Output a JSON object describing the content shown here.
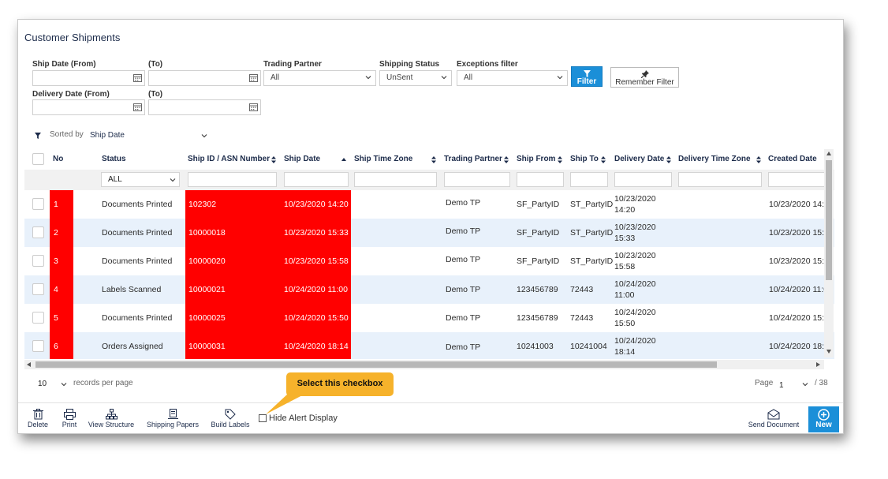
{
  "title": "Customer Shipments",
  "filters": {
    "ship_date_from_label": "Ship Date (From)",
    "ship_date_to_label": "(To)",
    "trading_partner_label": "Trading Partner",
    "trading_partner_value": "All",
    "shipping_status_label": "Shipping Status",
    "shipping_status_value": "UnSent",
    "exceptions_label": "Exceptions filter",
    "exceptions_value": "All",
    "delivery_date_from_label": "Delivery Date (From)",
    "delivery_date_to_label": "(To)",
    "filter_button": "Filter",
    "remember_button": "Remember Filter"
  },
  "sort": {
    "label": "Sorted by",
    "value": "Ship Date"
  },
  "columns": [
    "No",
    "Status",
    "Ship ID / ASN Number",
    "Ship Date",
    "Ship Time Zone",
    "Trading Partner",
    "Ship From",
    "Ship To",
    "Delivery Date",
    "Delivery Time Zone",
    "Created Date"
  ],
  "status_filter": "ALL",
  "rows": [
    {
      "no": "1",
      "status": "Documents Printed",
      "ship_id": "102302",
      "ship_date": "10/23/2020 14:20",
      "partner": "Demo TP",
      "ship_from": "SF_PartyID",
      "ship_to": "ST_PartyID",
      "delivery_date": "10/23/2020",
      "delivery_time": "14:20",
      "created": "10/23/2020 14:2"
    },
    {
      "no": "2",
      "status": "Documents Printed",
      "ship_id": "10000018",
      "ship_date": "10/23/2020 15:33",
      "partner": "Demo TP",
      "ship_from": "SF_PartyID",
      "ship_to": "ST_PartyID",
      "delivery_date": "10/23/2020",
      "delivery_time": "15:33",
      "created": "10/23/2020 15:3"
    },
    {
      "no": "3",
      "status": "Documents Printed",
      "ship_id": "10000020",
      "ship_date": "10/23/2020 15:58",
      "partner": "Demo TP",
      "ship_from": "SF_PartyID",
      "ship_to": "ST_PartyID",
      "delivery_date": "10/23/2020",
      "delivery_time": "15:58",
      "created": "10/23/2020 15:5"
    },
    {
      "no": "4",
      "status": "Labels Scanned",
      "ship_id": "10000021",
      "ship_date": "10/24/2020 11:00",
      "partner": "Demo TP",
      "ship_from": "123456789",
      "ship_to": "72443",
      "delivery_date": "10/24/2020",
      "delivery_time": "11:00",
      "created": "10/24/2020 11:0"
    },
    {
      "no": "5",
      "status": "Documents Printed",
      "ship_id": "10000025",
      "ship_date": "10/24/2020 15:50",
      "partner": "Demo TP",
      "ship_from": "123456789",
      "ship_to": "72443",
      "delivery_date": "10/24/2020",
      "delivery_time": "15:50",
      "created": "10/24/2020 15:5"
    },
    {
      "no": "6",
      "status": "Orders Assigned",
      "ship_id": "10000031",
      "ship_date": "10/24/2020 18:14",
      "partner": "Demo TP",
      "ship_from": "10241003",
      "ship_to": "10241004",
      "delivery_date": "10/24/2020",
      "delivery_time": "18:14",
      "created": "10/24/2020 18:"
    }
  ],
  "pager": {
    "per_page": "10",
    "per_page_label": "records per page",
    "page_label": "Page",
    "page_value": "1",
    "total_pages": "/ 38"
  },
  "toolbar": {
    "delete": "Delete",
    "print": "Print",
    "view_structure": "View Structure",
    "shipping_papers": "Shipping Papers",
    "build_labels": "Build Labels",
    "hide_alert": "Hide Alert Display",
    "send_document": "Send Document",
    "new": "New"
  },
  "callout": "Select this checkbox",
  "colors": {
    "accent": "#1b8fd8",
    "alert_red": "#ff0000",
    "row_alt": "#e8f1fb",
    "callout": "#f6b22b"
  }
}
